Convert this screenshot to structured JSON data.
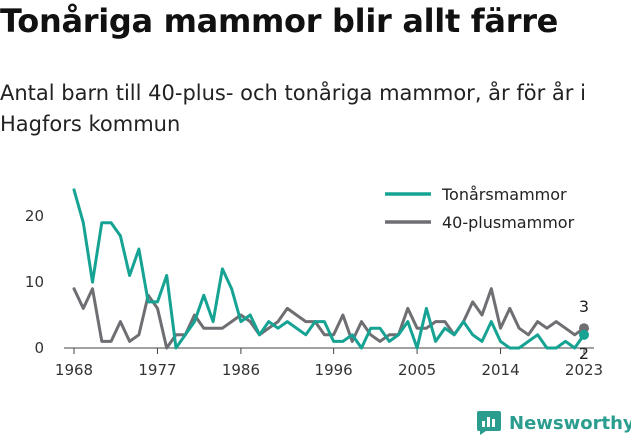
{
  "title": "Tonåriga mammor blir allt färre",
  "subtitle": "Antal barn till 40-plus- och tonåriga mammor, år för år i Hagfors kommun",
  "brand": {
    "name": "Newsworthy",
    "icon": "newsworthy-logo-icon"
  },
  "colors": {
    "teen": "#16a393",
    "forty": "#6e6e73",
    "axis": "#444444",
    "grid": "#e6e6e6",
    "brand": "#2a9d8f"
  },
  "chart_data": {
    "type": "line",
    "title": "",
    "xlabel": "",
    "ylabel": "",
    "xlim": [
      1968,
      2023
    ],
    "ylim": [
      0,
      27
    ],
    "y_ticks": [
      0,
      10,
      20
    ],
    "x_ticks": [
      1968,
      1977,
      1986,
      1996,
      2005,
      2014,
      2023
    ],
    "grid": false,
    "legend_position": "top-right",
    "x": [
      1968,
      1969,
      1970,
      1971,
      1972,
      1973,
      1974,
      1975,
      1976,
      1977,
      1978,
      1979,
      1980,
      1981,
      1982,
      1983,
      1984,
      1985,
      1986,
      1987,
      1988,
      1989,
      1990,
      1991,
      1992,
      1993,
      1994,
      1995,
      1996,
      1997,
      1998,
      1999,
      2000,
      2001,
      2002,
      2003,
      2004,
      2005,
      2006,
      2007,
      2008,
      2009,
      2010,
      2011,
      2012,
      2013,
      2014,
      2015,
      2016,
      2017,
      2018,
      2019,
      2020,
      2021,
      2022,
      2023
    ],
    "series": [
      {
        "name": "Tonårsmammor",
        "color": "#16a393",
        "end_label": "2",
        "values": [
          24,
          19,
          10,
          19,
          19,
          17,
          11,
          15,
          7,
          7,
          11,
          0,
          2,
          4,
          8,
          4,
          12,
          9,
          4,
          5,
          2,
          4,
          3,
          4,
          3,
          2,
          4,
          4,
          1,
          1,
          2,
          0,
          3,
          3,
          1,
          2,
          4,
          0,
          6,
          1,
          3,
          2,
          4,
          2,
          1,
          4,
          1,
          0,
          0,
          1,
          2,
          0,
          0,
          1,
          0,
          2
        ]
      },
      {
        "name": "40-plusmammor",
        "color": "#6e6e73",
        "end_label": "3",
        "values": [
          9,
          6,
          9,
          1,
          1,
          4,
          1,
          2,
          8,
          6,
          0,
          2,
          2,
          5,
          3,
          3,
          3,
          4,
          5,
          4,
          2,
          3,
          4,
          6,
          5,
          4,
          4,
          2,
          2,
          5,
          1,
          4,
          2,
          1,
          2,
          2,
          6,
          3,
          3,
          4,
          4,
          2,
          4,
          7,
          5,
          9,
          3,
          6,
          3,
          2,
          4,
          3,
          4,
          3,
          2,
          3
        ]
      }
    ]
  }
}
